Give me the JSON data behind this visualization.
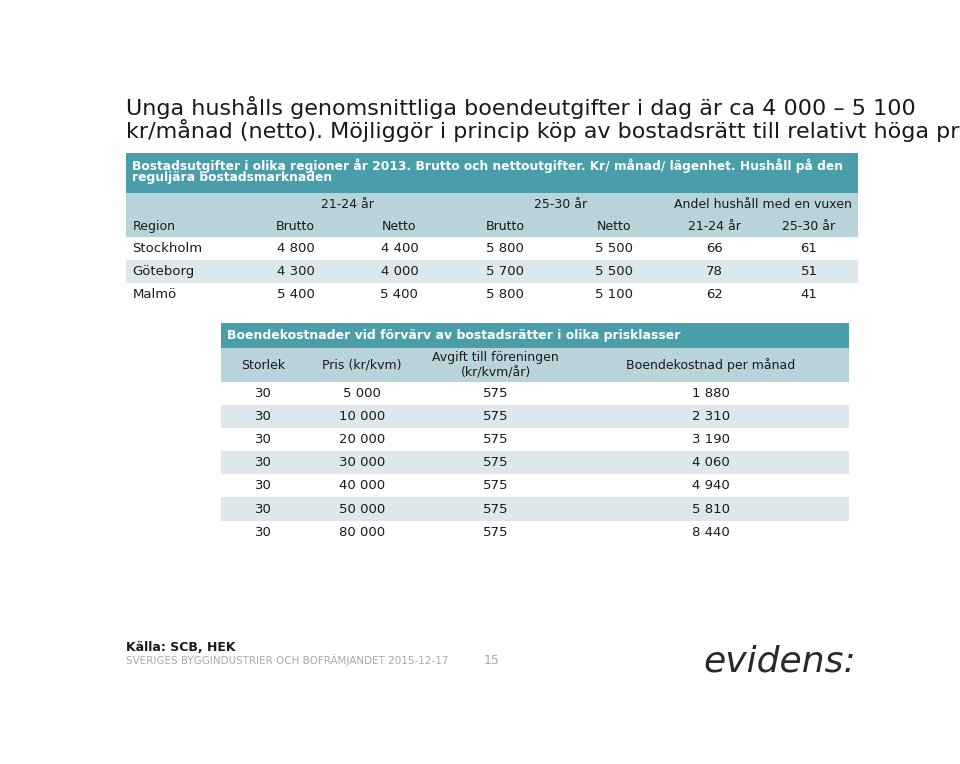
{
  "title_line1": "Unga hushålls genomsnittliga boendeutgifter i dag är ca 4 000 – 5 100",
  "title_line2": "kr/månad (netto). Möjliggör i princip köp av bostadsrätt till relativt höga priser",
  "table1_header_bg": "#4a9eaa",
  "table1_header_text_line1": "Bostadsutgifter i olika regioner år 2013. Brutto och nettoutgifter. Kr/ månad/ lägenhet. Hushåll på den",
  "table1_header_text_line2": "reguljära bostadsmarknaden",
  "table1_subheader_bg": "#b8d4da",
  "table1_row_bg_odd": "#dce8ec",
  "table1_row_bg_even": "#ffffff",
  "table1_col_groups": [
    "21-24 år",
    "25-30 år",
    "Andel hushåll med en vuxen"
  ],
  "table1_col_subheaders": [
    "Region",
    "Brutto",
    "Netto",
    "Brutto",
    "Netto",
    "21-24 år",
    "25-30 år"
  ],
  "table1_rows": [
    [
      "Stockholm",
      "4 800",
      "4 400",
      "5 800",
      "5 500",
      "66",
      "61"
    ],
    [
      "Göteborg",
      "4 300",
      "4 000",
      "5 700",
      "5 500",
      "78",
      "51"
    ],
    [
      "Malmö",
      "5 400",
      "5 400",
      "5 800",
      "5 100",
      "62",
      "41"
    ]
  ],
  "table2_header_bg": "#4a9eaa",
  "table2_header_text": "Boendekostnader vid förvärv av bostadsrätter i olika prisklasser",
  "table2_subheader_bg": "#b8d4da",
  "table2_col_headers": [
    "Storlek",
    "Pris (kr/kvm)",
    "Avgift till föreningen\n(kr/kvm/år)",
    "Boendekostnad per månad"
  ],
  "table2_rows": [
    [
      "30",
      "5 000",
      "575",
      "1 880"
    ],
    [
      "30",
      "10 000",
      "575",
      "2 310"
    ],
    [
      "30",
      "20 000",
      "575",
      "3 190"
    ],
    [
      "30",
      "30 000",
      "575",
      "4 060"
    ],
    [
      "30",
      "40 000",
      "575",
      "4 940"
    ],
    [
      "30",
      "50 000",
      "575",
      "5 810"
    ],
    [
      "30",
      "80 000",
      "575",
      "8 440"
    ]
  ],
  "footer_source": "Källa: SCB, HEK",
  "footer_org": "SVERIGES BYGGINDUSTRIER OCH BOFRÄMJANDET 2015-12-17",
  "footer_page": "15",
  "footer_logo": "evidens:",
  "bg_color": "#ffffff",
  "text_color": "#1a1a1a",
  "header_text_color": "#ffffff"
}
